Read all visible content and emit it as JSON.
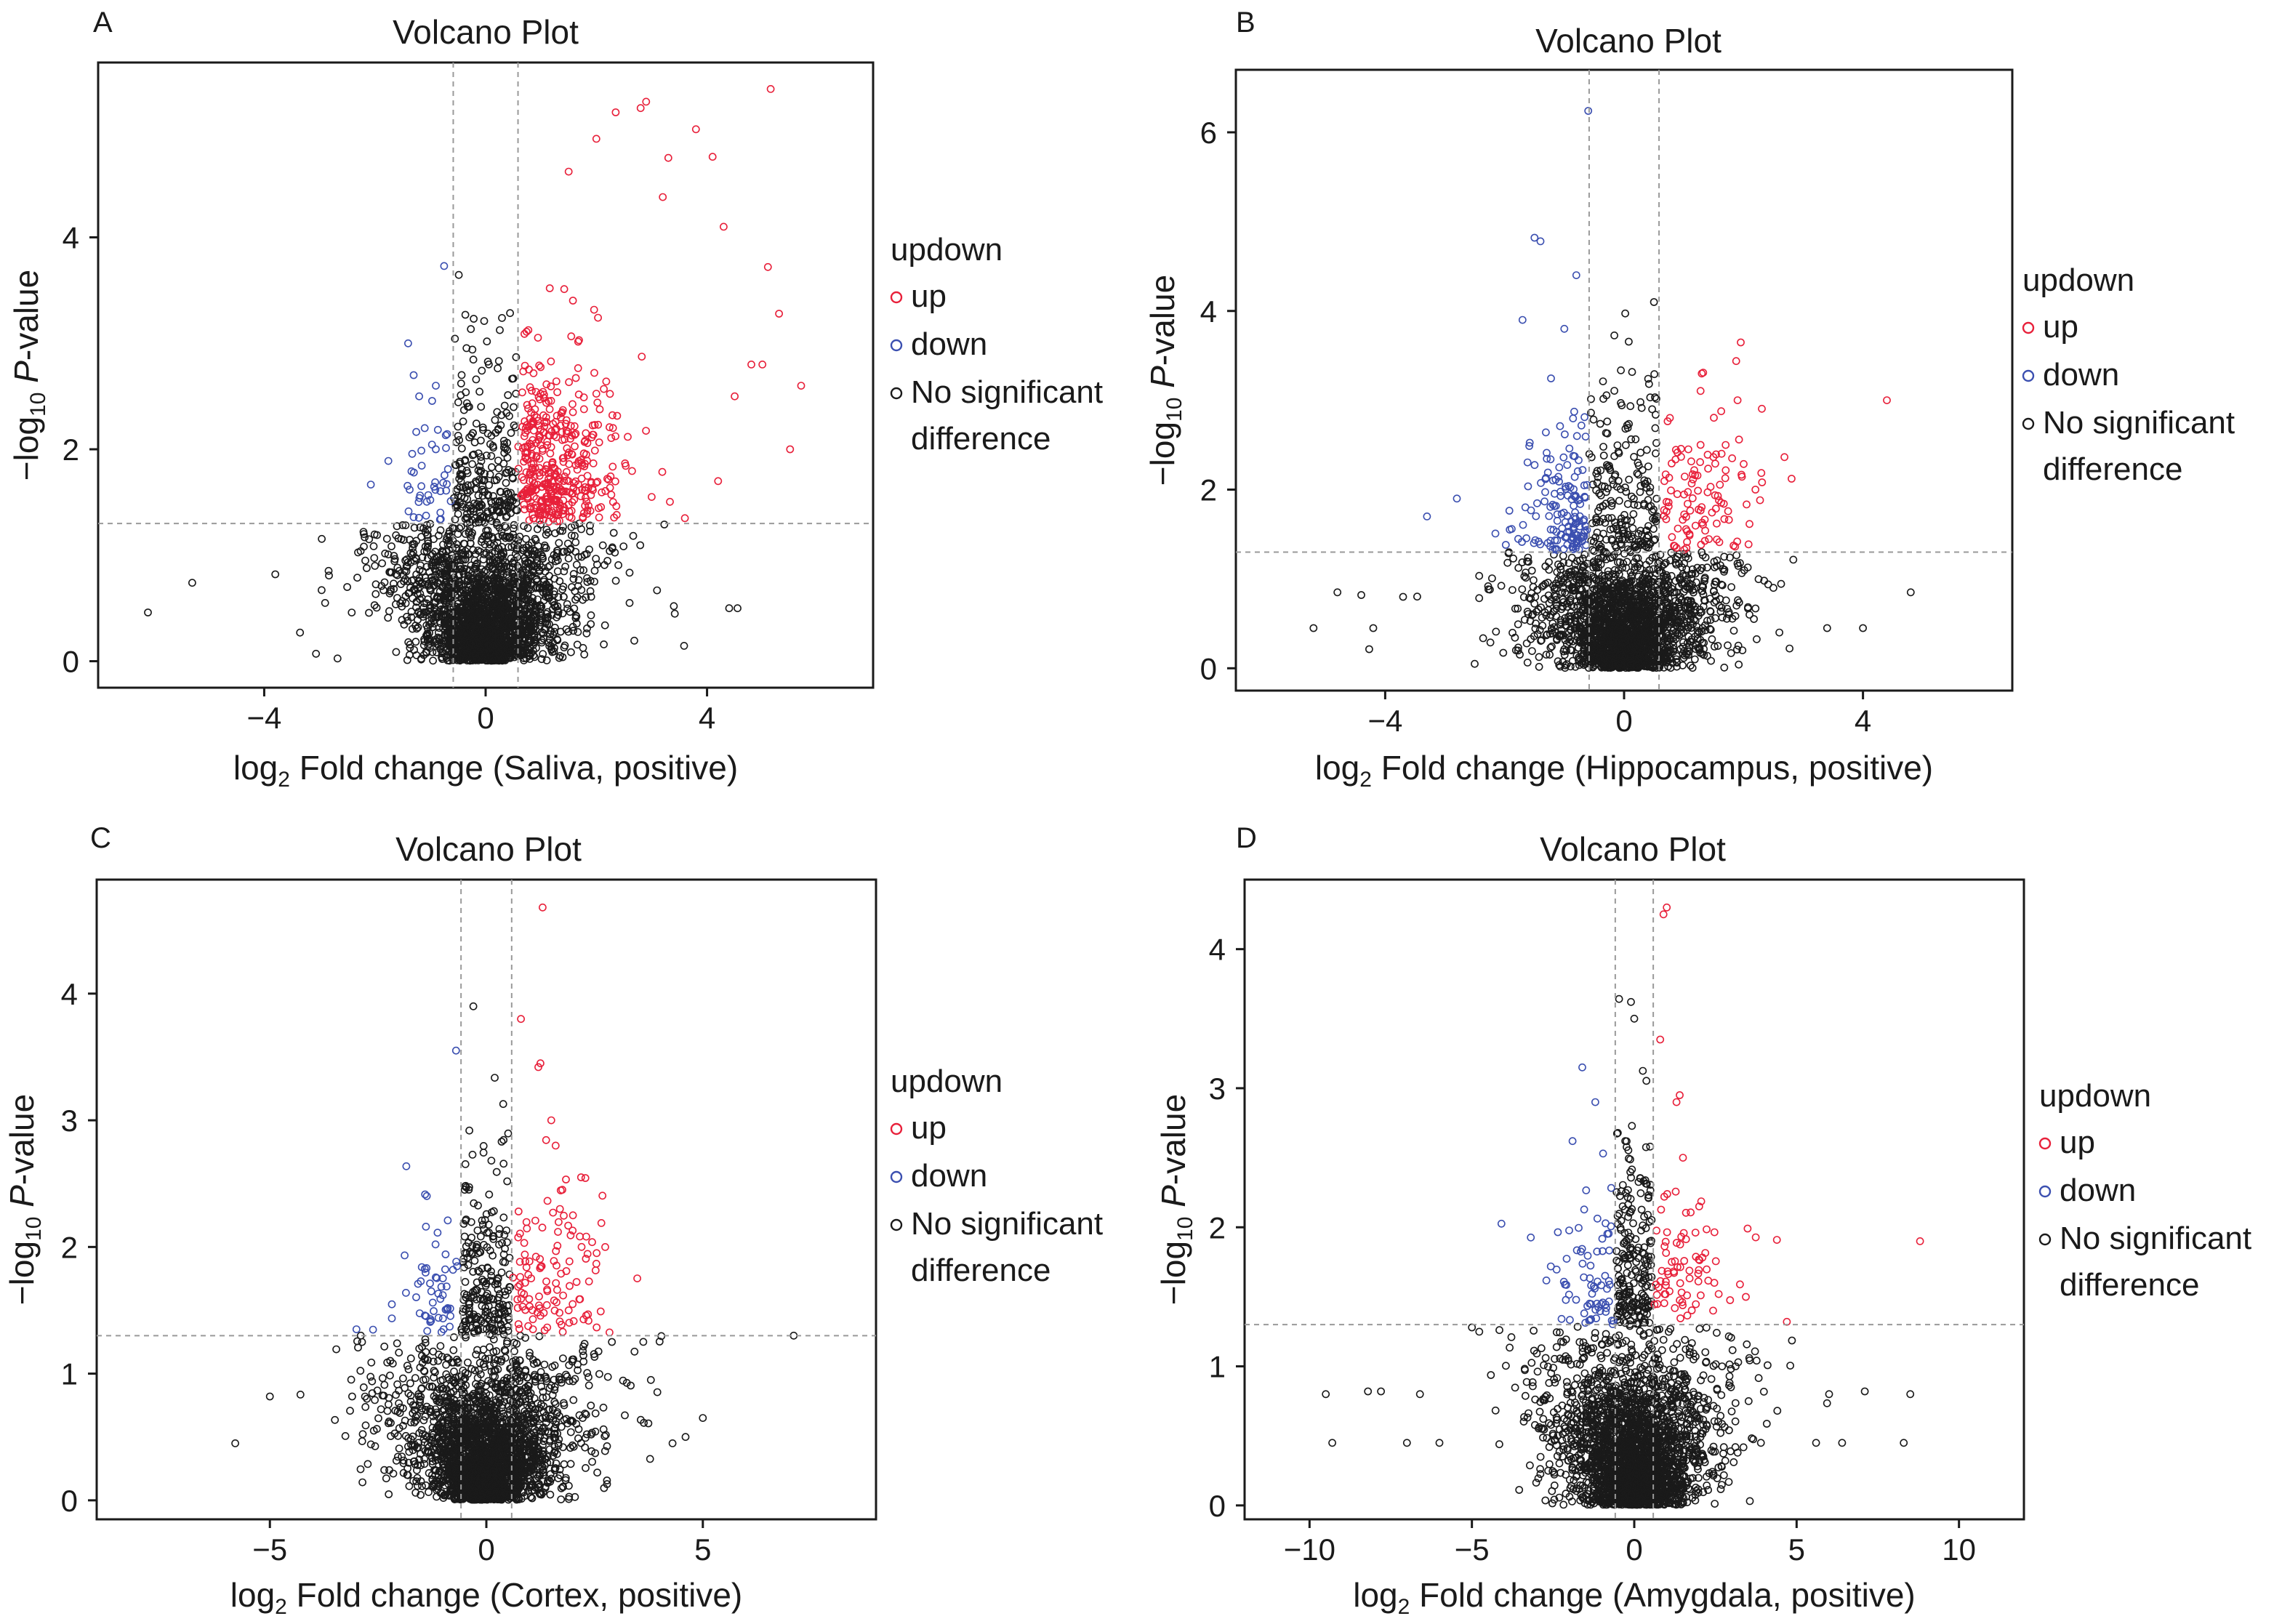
{
  "colors": {
    "up": "#e8203a",
    "down": "#3b4fb0",
    "nosig": "#1a1a1a",
    "threshold_line": "#9a9a9a"
  },
  "legend": {
    "title": "updown",
    "entries": [
      {
        "key": "up",
        "label": "up"
      },
      {
        "key": "down",
        "label": "down"
      },
      {
        "key": "nosig",
        "label_lines": [
          "No significant",
          "difference"
        ]
      }
    ]
  },
  "chart_data": [
    {
      "panel": "A",
      "type": "scatter",
      "title": "Volcano Plot",
      "xlabel_prefix": "log",
      "xlabel_sub": "2",
      "xlabel_rest": " Fold change (Saliva, positive)",
      "ylabel_prefix": "−log",
      "ylabel_sub": "10",
      "ylabel_italic": "P",
      "ylabel_rest": "-value",
      "xlim": [
        -7.0,
        7.0
      ],
      "ylim": [
        -0.25,
        5.65
      ],
      "xticks": [
        -4,
        0,
        4
      ],
      "xtick_labels": [
        "−4",
        "0",
        "4"
      ],
      "yticks": [
        0,
        2,
        4
      ],
      "ytick_labels": [
        "0",
        "2",
        "4"
      ],
      "fc_threshold": 0.585,
      "p_threshold": 1.3,
      "grid": false,
      "legend_position": "right",
      "highlighted_points": [
        [
          -6.1,
          0.46
        ],
        [
          -5.3,
          0.74
        ],
        [
          -3.8,
          0.82
        ],
        [
          -2.9,
          0.55
        ],
        [
          -2.5,
          0.7
        ],
        [
          -2.2,
          1.2
        ],
        [
          -2.0,
          0.9
        ],
        [
          -1.4,
          3.0
        ],
        [
          -1.3,
          2.7
        ],
        [
          -1.2,
          2.5
        ],
        [
          -1.1,
          2.2
        ],
        [
          -0.9,
          2.0
        ],
        [
          -0.75,
          3.73
        ],
        [
          -0.9,
          2.6
        ],
        [
          2.35,
          5.18
        ],
        [
          2.9,
          5.28
        ],
        [
          2.8,
          5.22
        ],
        [
          5.15,
          5.4
        ],
        [
          3.8,
          5.02
        ],
        [
          3.3,
          4.75
        ],
        [
          4.1,
          4.76
        ],
        [
          2.0,
          4.93
        ],
        [
          1.5,
          4.62
        ],
        [
          3.2,
          4.38
        ],
        [
          4.3,
          4.1
        ],
        [
          5.1,
          3.72
        ],
        [
          5.3,
          3.28
        ],
        [
          5.0,
          2.8
        ],
        [
          5.5,
          2.0
        ],
        [
          4.5,
          2.5
        ],
        [
          4.8,
          2.8
        ],
        [
          5.7,
          2.6
        ],
        [
          4.2,
          1.7
        ],
        [
          3.0,
          1.55
        ],
        [
          3.6,
          1.35
        ],
        [
          1.0,
          1.5
        ],
        [
          -0.5,
          1.2
        ],
        [
          3.4,
          0.52
        ],
        [
          4.4,
          0.5
        ],
        [
          4.55,
          0.5
        ],
        [
          2.6,
          0.55
        ],
        [
          1.9,
          0.35
        ]
      ],
      "seed": 11,
      "n_nosig": 2400,
      "n_up": 420,
      "n_down": 40
    },
    {
      "panel": "B",
      "type": "scatter",
      "title": "Volcano Plot",
      "xlabel_prefix": "log",
      "xlabel_sub": "2",
      "xlabel_rest": " Fold change (Hippocampus, positive)",
      "ylabel_prefix": "−log",
      "ylabel_sub": "10",
      "ylabel_italic": "P",
      "ylabel_rest": "-value",
      "xlim": [
        -6.5,
        6.5
      ],
      "ylim": [
        -0.25,
        6.7
      ],
      "xticks": [
        -4,
        0,
        4
      ],
      "xtick_labels": [
        "−4",
        "0",
        "4"
      ],
      "yticks": [
        0,
        2,
        4,
        6
      ],
      "ytick_labels": [
        "0",
        "2",
        "4",
        "6"
      ],
      "fc_threshold": 0.585,
      "p_threshold": 1.3,
      "grid": false,
      "legend_position": "right",
      "highlighted_points": [
        [
          -0.6,
          6.24
        ],
        [
          -1.4,
          4.78
        ],
        [
          -1.5,
          4.82
        ],
        [
          -0.8,
          4.4
        ],
        [
          -1.7,
          3.9
        ],
        [
          -1.0,
          3.8
        ],
        [
          -4.8,
          0.85
        ],
        [
          -4.4,
          0.82
        ],
        [
          -4.2,
          0.45
        ],
        [
          -5.2,
          0.45
        ],
        [
          -3.7,
          0.8
        ],
        [
          -3.3,
          1.7
        ],
        [
          -2.8,
          1.9
        ],
        [
          4.4,
          3.0
        ],
        [
          4.8,
          0.85
        ],
        [
          4.0,
          0.45
        ],
        [
          3.4,
          0.45
        ],
        [
          2.6,
          0.4
        ],
        [
          1.9,
          3.0
        ],
        [
          1.3,
          3.3
        ],
        [
          0.5,
          4.1
        ],
        [
          2.2,
          2.0
        ],
        [
          1.7,
          2.5
        ],
        [
          2.5,
          0.9
        ],
        [
          2.1,
          0.6
        ]
      ],
      "seed": 23,
      "n_nosig": 2200,
      "n_up": 110,
      "n_down": 150
    },
    {
      "panel": "C",
      "type": "scatter",
      "title": "Volcano Plot",
      "xlabel_prefix": "log",
      "xlabel_sub": "2",
      "xlabel_rest": " Fold change (Cortex, positive)",
      "ylabel_prefix": "−log",
      "ylabel_sub": "10",
      "ylabel_italic": "P",
      "ylabel_rest": "-value",
      "xlim": [
        -9.0,
        9.0
      ],
      "ylim": [
        -0.15,
        4.9
      ],
      "xticks": [
        -5,
        0,
        5
      ],
      "xtick_labels": [
        "−5",
        "0",
        "5"
      ],
      "yticks": [
        0,
        1,
        2,
        3,
        4
      ],
      "ytick_labels": [
        "0",
        "1",
        "2",
        "3",
        "4"
      ],
      "fc_threshold": 0.585,
      "p_threshold": 1.3,
      "grid": false,
      "legend_position": "right",
      "highlighted_points": [
        [
          1.3,
          4.68
        ],
        [
          0.8,
          3.8
        ],
        [
          1.2,
          3.42
        ],
        [
          1.25,
          3.45
        ],
        [
          -0.7,
          3.55
        ],
        [
          -0.3,
          3.9
        ],
        [
          7.1,
          1.3
        ],
        [
          -5.0,
          0.82
        ],
        [
          -5.8,
          0.45
        ],
        [
          5.0,
          0.65
        ],
        [
          4.6,
          0.5
        ],
        [
          4.3,
          0.45
        ],
        [
          3.8,
          0.95
        ],
        [
          2.9,
          1.25
        ],
        [
          -3.1,
          0.82
        ],
        [
          -2.9,
          1.3
        ],
        [
          -3.0,
          1.35
        ],
        [
          -2.6,
          0.55
        ],
        [
          1.5,
          3.0
        ],
        [
          1.6,
          2.8
        ],
        [
          1.7,
          2.3
        ],
        [
          2.0,
          2.25
        ],
        [
          2.2,
          2.0
        ],
        [
          1.9,
          1.5
        ]
      ],
      "seed": 37,
      "n_nosig": 2600,
      "n_up": 110,
      "n_down": 55
    },
    {
      "panel": "D",
      "type": "scatter",
      "title": "Volcano Plot",
      "xlabel_prefix": "log",
      "xlabel_sub": "2",
      "xlabel_rest": " Fold change (Amygdala, positive)",
      "ylabel_prefix": "−log",
      "ylabel_sub": "10",
      "ylabel_italic": "P",
      "ylabel_rest": "-value",
      "xlim": [
        -12.0,
        12.0
      ],
      "ylim": [
        -0.1,
        4.5
      ],
      "xticks": [
        -10,
        -5,
        0,
        5,
        10
      ],
      "xtick_labels": [
        "−10",
        "−5",
        "0",
        "5",
        "10"
      ],
      "yticks": [
        0,
        1,
        2,
        3,
        4
      ],
      "ytick_labels": [
        "0",
        "1",
        "2",
        "3",
        "4"
      ],
      "fc_threshold": 0.585,
      "p_threshold": 1.3,
      "grid": false,
      "legend_position": "right",
      "highlighted_points": [
        [
          1.0,
          4.3
        ],
        [
          0.9,
          4.25
        ],
        [
          -0.1,
          3.62
        ],
        [
          0.0,
          3.5
        ],
        [
          0.8,
          3.35
        ],
        [
          -1.6,
          3.15
        ],
        [
          1.4,
          2.95
        ],
        [
          1.3,
          2.9
        ],
        [
          8.8,
          1.9
        ],
        [
          4.7,
          1.32
        ],
        [
          2.6,
          1.52
        ],
        [
          3.9,
          0.45
        ],
        [
          5.6,
          0.45
        ],
        [
          6.4,
          0.45
        ],
        [
          8.3,
          0.45
        ],
        [
          6.0,
          0.8
        ],
        [
          7.1,
          0.82
        ],
        [
          8.5,
          0.8
        ],
        [
          -9.5,
          0.8
        ],
        [
          -9.3,
          0.45
        ],
        [
          -8.2,
          0.82
        ],
        [
          -7.8,
          0.82
        ],
        [
          -6.6,
          0.8
        ],
        [
          -5.0,
          1.28
        ],
        [
          -7.0,
          0.45
        ],
        [
          -6.0,
          0.45
        ],
        [
          -1.9,
          2.62
        ],
        [
          -1.2,
          2.9
        ],
        [
          2.0,
          2.15
        ],
        [
          1.5,
          2.5
        ]
      ],
      "seed": 53,
      "n_nosig": 2600,
      "n_up": 75,
      "n_down": 70
    }
  ]
}
